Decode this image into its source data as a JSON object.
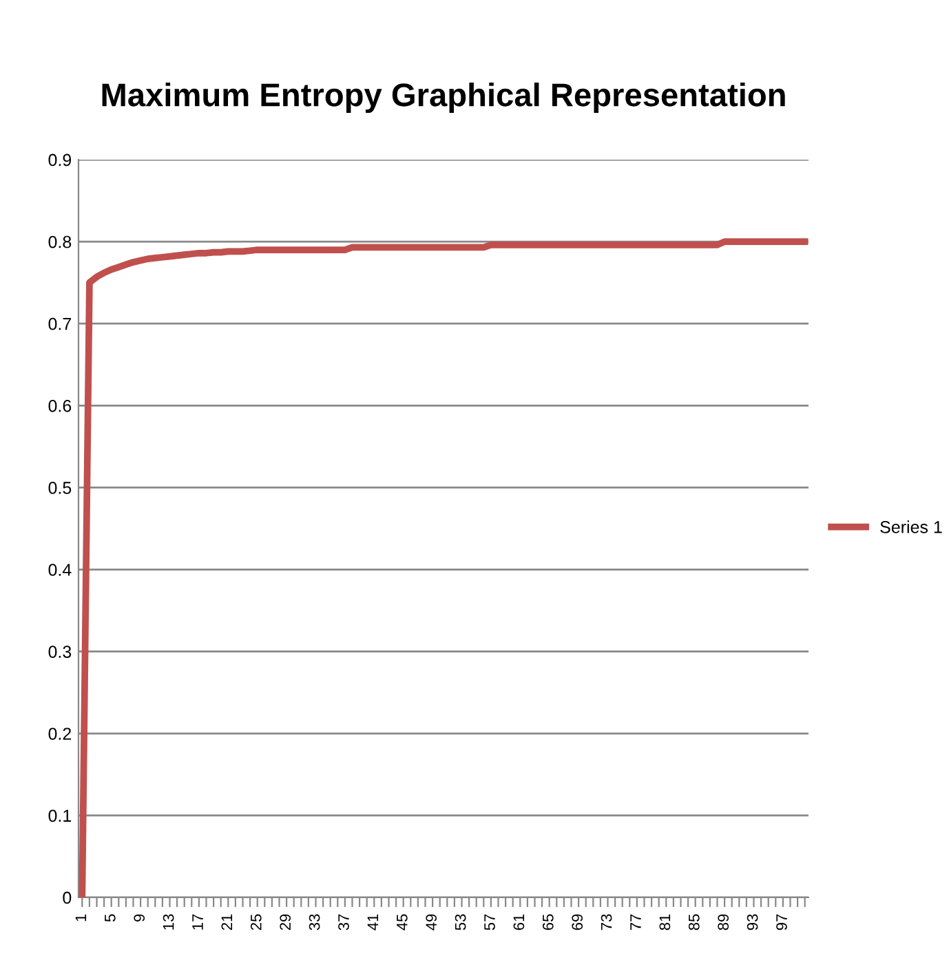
{
  "chart_data": {
    "type": "line",
    "title": "Maximum Entropy Graphical Representation",
    "categories": [
      "1",
      null,
      null,
      null,
      "5",
      null,
      null,
      null,
      "9",
      null,
      null,
      null,
      "13",
      null,
      null,
      null,
      "17",
      null,
      null,
      null,
      "21",
      null,
      null,
      null,
      "25",
      null,
      null,
      null,
      "29",
      null,
      null,
      null,
      "33",
      null,
      null,
      null,
      "37",
      null,
      null,
      null,
      "41",
      null,
      null,
      null,
      "45",
      null,
      null,
      null,
      "49",
      null,
      null,
      null,
      "53",
      null,
      null,
      null,
      "57",
      null,
      null,
      null,
      "61",
      null,
      null,
      null,
      "65",
      null,
      null,
      null,
      "69",
      null,
      null,
      null,
      "73",
      null,
      null,
      null,
      "77",
      null,
      null,
      null,
      "81",
      null,
      null,
      null,
      "85",
      null,
      null,
      null,
      "89",
      null,
      null,
      null,
      "93",
      null,
      null,
      null,
      "97",
      null,
      null,
      null
    ],
    "series": [
      {
        "name": "Series 1",
        "color": "#c0504d",
        "values": [
          0,
          0.75,
          0.757,
          0.762,
          0.766,
          0.769,
          0.772,
          0.775,
          0.777,
          0.779,
          0.78,
          0.781,
          0.782,
          0.783,
          0.784,
          0.785,
          0.786,
          0.786,
          0.787,
          0.787,
          0.788,
          0.788,
          0.788,
          0.789,
          0.79,
          0.79,
          0.79,
          0.79,
          0.79,
          0.79,
          0.79,
          0.79,
          0.79,
          0.79,
          0.79,
          0.79,
          0.79,
          0.793,
          0.793,
          0.793,
          0.793,
          0.793,
          0.793,
          0.793,
          0.793,
          0.793,
          0.793,
          0.793,
          0.793,
          0.793,
          0.793,
          0.793,
          0.793,
          0.793,
          0.793,
          0.793,
          0.796,
          0.796,
          0.796,
          0.796,
          0.796,
          0.796,
          0.796,
          0.796,
          0.796,
          0.796,
          0.796,
          0.796,
          0.796,
          0.796,
          0.796,
          0.796,
          0.796,
          0.796,
          0.796,
          0.796,
          0.796,
          0.796,
          0.796,
          0.796,
          0.796,
          0.796,
          0.796,
          0.796,
          0.796,
          0.796,
          0.796,
          0.796,
          0.8,
          0.8,
          0.8,
          0.8,
          0.8,
          0.8,
          0.8,
          0.8,
          0.8,
          0.8,
          0.8,
          0.8
        ]
      }
    ],
    "ylim": [
      0,
      0.9
    ],
    "yticks": [
      0,
      0.1,
      0.2,
      0.3,
      0.4,
      0.5,
      0.6,
      0.7,
      0.8,
      0.9
    ],
    "grid": "y",
    "legend": "right",
    "marker": "none",
    "line_style": "solid"
  }
}
